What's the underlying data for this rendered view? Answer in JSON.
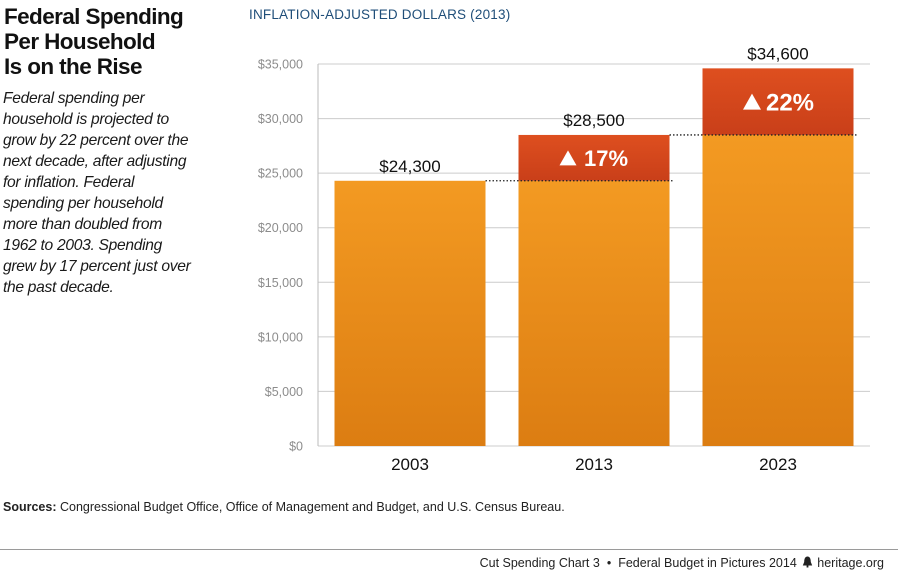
{
  "title_lines": [
    "Federal Spending",
    "Per Household",
    "Is on the Rise"
  ],
  "description_lines": [
    "Federal spending per",
    "household is projected to",
    "grow by 22 percent over the",
    "next decade, after adjusting",
    "for inflation. Federal",
    "spending per household",
    "more than doubled from",
    "1962 to 2003. Spending",
    "grew by 17 percent just over",
    "the past decade."
  ],
  "chart_data": {
    "type": "bar",
    "title": "",
    "subtitle": "INFLATION-ADJUSTED DOLLARS (2013)",
    "xlabel": "",
    "ylabel": "",
    "categories": [
      "2003",
      "2013",
      "2023"
    ],
    "values": [
      24300,
      28500,
      34600
    ],
    "value_labels": [
      "$24,300",
      "$28,500",
      "$34,600"
    ],
    "increase_labels": [
      "",
      "17%",
      "22%"
    ],
    "ylim": [
      0,
      35000
    ],
    "yticks": [
      0,
      5000,
      10000,
      15000,
      20000,
      25000,
      30000,
      35000
    ],
    "ytick_labels": [
      "$0",
      "$5,000",
      "$10,000",
      "$15,000",
      "$20,000",
      "$25,000",
      "$30,000",
      "$35,000"
    ],
    "grid": true,
    "colors": {
      "base": "#f0921e",
      "increase": "#dc4a1e",
      "increase_dark": "#c53d17",
      "grid": "#cccccc",
      "tick_text": "#8c8c8c"
    }
  },
  "sources": {
    "label": "Sources:",
    "text": " Congressional Budget Office, Office of Management and Budget, and U.S. Census Bureau."
  },
  "footer": {
    "chart_id": "Cut Spending Chart 3",
    "separator": "•",
    "publication": "Federal Budget in Pictures 2014",
    "site": "heritage.org"
  }
}
